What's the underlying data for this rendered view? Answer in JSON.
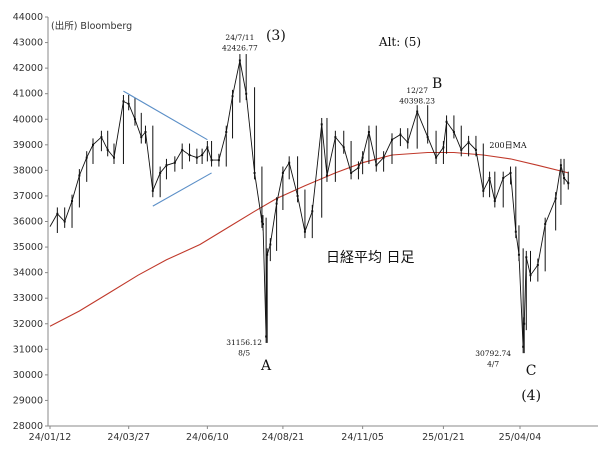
{
  "chart_data": {
    "type": "line",
    "title": "日経平均 日足",
    "source": "(出所) Bloomberg",
    "xlabel": "",
    "ylabel": "",
    "ylim": [
      28000,
      44000
    ],
    "yticks": [
      28000,
      29000,
      30000,
      31000,
      32000,
      33000,
      34000,
      35000,
      36000,
      37000,
      38000,
      39000,
      40000,
      41000,
      42000,
      43000,
      44000
    ],
    "xticks": [
      "24/01/12",
      "24/03/27",
      "24/06/10",
      "24/08/21",
      "24/11/05",
      "25/01/21",
      "25/04/04"
    ],
    "grid": false,
    "series": [
      {
        "name": "",
        "kind": "price",
        "points": [
          [
            "24/01/12",
            35800
          ],
          [
            "24/01/19",
            36300
          ],
          [
            "24/01/26",
            36000
          ],
          [
            "24/02/02",
            36800
          ],
          [
            "24/02/09",
            37800
          ],
          [
            "24/02/16",
            38500
          ],
          [
            "24/02/22",
            39000
          ],
          [
            "24/03/01",
            39300
          ],
          [
            "24/03/07",
            38800
          ],
          [
            "24/03/13",
            38500
          ],
          [
            "24/03/22",
            40700
          ],
          [
            "24/03/27",
            40600
          ],
          [
            "24/04/02",
            40000
          ],
          [
            "24/04/08",
            39300
          ],
          [
            "24/04/12",
            39500
          ],
          [
            "24/04/19",
            37200
          ],
          [
            "24/04/26",
            37900
          ],
          [
            "24/05/02",
            38200
          ],
          [
            "24/05/10",
            38300
          ],
          [
            "24/05/17",
            38800
          ],
          [
            "24/05/24",
            38600
          ],
          [
            "24/05/31",
            38500
          ],
          [
            "24/06/05",
            38600
          ],
          [
            "24/06/10",
            38900
          ],
          [
            "24/06/14",
            38400
          ],
          [
            "24/06/21",
            38400
          ],
          [
            "24/06/28",
            39500
          ],
          [
            "24/07/04",
            40900
          ],
          [
            "24/07/11",
            42300
          ],
          [
            "24/07/17",
            41000
          ],
          [
            "24/07/25",
            37900
          ],
          [
            "24/08/01",
            36000
          ],
          [
            "24/08/02",
            35900
          ],
          [
            "24/08/05",
            31500
          ],
          [
            "24/08/06",
            34700
          ],
          [
            "24/08/09",
            35100
          ],
          [
            "24/08/15",
            36700
          ],
          [
            "24/08/21",
            37900
          ],
          [
            "24/08/27",
            38300
          ],
          [
            "24/09/04",
            37000
          ],
          [
            "24/09/11",
            35600
          ],
          [
            "24/09/18",
            36400
          ],
          [
            "24/09/27",
            39800
          ],
          [
            "24/10/02",
            37800
          ],
          [
            "24/10/10",
            39300
          ],
          [
            "24/10/18",
            38900
          ],
          [
            "24/10/25",
            37900
          ],
          [
            "24/11/01",
            38100
          ],
          [
            "24/11/05",
            38500
          ],
          [
            "24/11/11",
            39500
          ],
          [
            "24/11/18",
            38200
          ],
          [
            "24/11/25",
            38500
          ],
          [
            "24/12/03",
            39200
          ],
          [
            "24/12/11",
            39400
          ],
          [
            "24/12/18",
            39100
          ],
          [
            "24/12/27",
            40300
          ],
          [
            "25/01/06",
            39300
          ],
          [
            "25/01/14",
            38500
          ],
          [
            "25/01/21",
            38900
          ],
          [
            "25/01/24",
            39900
          ],
          [
            "25/01/31",
            39500
          ],
          [
            "25/02/07",
            38800
          ],
          [
            "25/02/14",
            39100
          ],
          [
            "25/02/21",
            38800
          ],
          [
            "25/02/28",
            37200
          ],
          [
            "25/03/06",
            37700
          ],
          [
            "25/03/11",
            36800
          ],
          [
            "25/03/19",
            37700
          ],
          [
            "25/03/26",
            37900
          ],
          [
            "25/03/31",
            35600
          ],
          [
            "25/04/03",
            34700
          ],
          [
            "25/04/07",
            31100
          ],
          [
            "25/04/08",
            32000
          ],
          [
            "25/04/10",
            34600
          ],
          [
            "25/04/14",
            33900
          ],
          [
            "25/04/21",
            34300
          ],
          [
            "25/04/28",
            35900
          ],
          [
            "25/05/08",
            36900
          ],
          [
            "25/05/13",
            38200
          ],
          [
            "25/05/16",
            37700
          ],
          [
            "25/05/20",
            37500
          ]
        ]
      },
      {
        "name": "200日MA",
        "kind": "ma",
        "points": [
          [
            "24/01/12",
            31900
          ],
          [
            "24/02/09",
            32500
          ],
          [
            "24/03/08",
            33200
          ],
          [
            "24/04/05",
            33900
          ],
          [
            "24/05/02",
            34500
          ],
          [
            "24/06/03",
            35100
          ],
          [
            "24/07/01",
            35800
          ],
          [
            "24/07/25",
            36400
          ],
          [
            "24/08/15",
            36900
          ],
          [
            "24/09/11",
            37400
          ],
          [
            "24/10/10",
            37900
          ],
          [
            "24/11/05",
            38300
          ],
          [
            "24/12/03",
            38600
          ],
          [
            "25/01/06",
            38700
          ],
          [
            "25/01/31",
            38700
          ],
          [
            "25/02/28",
            38600
          ],
          [
            "25/03/26",
            38450
          ],
          [
            "25/04/21",
            38200
          ],
          [
            "25/05/20",
            37900
          ]
        ]
      }
    ],
    "annotations": [
      {
        "x": "24/07/11",
        "lines": [
          "24/7/11",
          "42426.77"
        ],
        "size": 7.5
      },
      {
        "x": "24/07/11",
        "lines": [
          "(3)"
        ],
        "size": 14
      },
      {
        "x": "24/08/05",
        "lines": [
          "31156.12",
          "8/5"
        ],
        "size": 7.5
      },
      {
        "x": "24/08/05",
        "lines": [
          "A"
        ],
        "size": 14
      },
      {
        "x": "24/12/27",
        "lines": [
          "12/27",
          "40398.23"
        ],
        "size": 7.5
      },
      {
        "x": "24/12/27",
        "lines": [
          "B"
        ],
        "size": 14
      },
      {
        "x": "25/04/07",
        "lines": [
          "30792.74",
          "4/7"
        ],
        "size": 7.5
      },
      {
        "x": "25/04/07",
        "lines": [
          "C"
        ],
        "size": 14
      },
      {
        "x": "25/04/07",
        "lines": [
          "(4)"
        ],
        "size": 14
      },
      {
        "x": "",
        "lines": [
          "Alt: (5)"
        ],
        "size": 12
      },
      {
        "x": "",
        "lines": [
          "200日MA"
        ],
        "size": 8,
        "color": "#c0392b"
      }
    ],
    "triangle": {
      "upper": [
        [
          "24/03/22",
          41100
        ],
        [
          "24/06/10",
          39200
        ]
      ],
      "lower": [
        [
          "24/04/19",
          36600
        ],
        [
          "24/06/14",
          37900
        ]
      ],
      "color": "#5b8fc7"
    },
    "colors": {
      "price": "#111111",
      "ma": "#c0392b",
      "axis": "#888888"
    }
  }
}
